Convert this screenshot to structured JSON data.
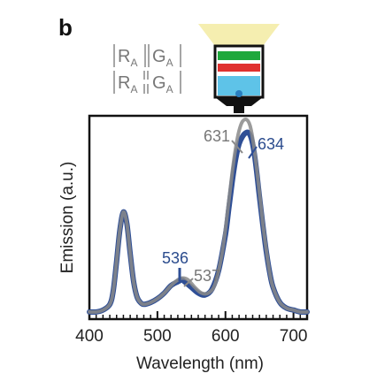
{
  "panel_label": "b",
  "legend": {
    "row1": {
      "a": "R",
      "a_sub": "A",
      "b": "G",
      "b_sub": "A"
    },
    "row2": {
      "a": "R",
      "a_sub": "A",
      "b": "G",
      "b_sub": "A"
    }
  },
  "colors": {
    "blue_series": "#2f4f96",
    "grey_series": "#8a8a8a",
    "device_green": "#1fa83c",
    "device_red": "#e0312f",
    "device_cyan": "#5ec3e8",
    "light_cone": "#f5eeb0"
  },
  "chart_data": {
    "type": "line",
    "title": "",
    "xlabel": "Wavelength (nm)",
    "ylabel": "Emission (a.u.)",
    "xlim": [
      400,
      720
    ],
    "ylim": [
      0,
      1.05
    ],
    "xticks": [
      400,
      500,
      600,
      700
    ],
    "series": [
      {
        "color": "#2f4f96",
        "x": [
          400,
          410,
          420,
          430,
          435,
          440,
          445,
          450,
          455,
          460,
          465,
          470,
          475,
          480,
          490,
          500,
          510,
          520,
          530,
          536,
          540,
          550,
          560,
          570,
          580,
          590,
          600,
          605,
          610,
          615,
          620,
          625,
          630,
          634,
          638,
          642,
          646,
          650,
          655,
          660,
          665,
          670,
          680,
          690,
          700,
          710,
          720
        ],
        "y": [
          0.01,
          0.01,
          0.02,
          0.05,
          0.12,
          0.28,
          0.45,
          0.54,
          0.48,
          0.32,
          0.17,
          0.09,
          0.06,
          0.05,
          0.06,
          0.08,
          0.11,
          0.15,
          0.17,
          0.18,
          0.17,
          0.14,
          0.11,
          0.1,
          0.13,
          0.23,
          0.42,
          0.56,
          0.7,
          0.82,
          0.9,
          0.94,
          0.96,
          0.96,
          0.93,
          0.86,
          0.75,
          0.62,
          0.47,
          0.33,
          0.22,
          0.14,
          0.06,
          0.03,
          0.02,
          0.01,
          0.01
        ]
      },
      {
        "color": "#8a8a8a",
        "x": [
          400,
          410,
          420,
          430,
          435,
          440,
          445,
          450,
          455,
          460,
          465,
          470,
          475,
          480,
          490,
          500,
          510,
          520,
          530,
          537,
          545,
          555,
          565,
          575,
          585,
          595,
          600,
          605,
          610,
          615,
          620,
          625,
          631,
          636,
          640,
          645,
          650,
          655,
          660,
          665,
          670,
          680,
          690,
          700,
          710,
          720
        ],
        "y": [
          0.01,
          0.01,
          0.02,
          0.05,
          0.12,
          0.28,
          0.45,
          0.54,
          0.48,
          0.32,
          0.17,
          0.09,
          0.06,
          0.05,
          0.06,
          0.08,
          0.11,
          0.15,
          0.18,
          0.19,
          0.18,
          0.14,
          0.11,
          0.11,
          0.16,
          0.32,
          0.45,
          0.6,
          0.75,
          0.88,
          0.97,
          1.02,
          1.03,
          1.0,
          0.93,
          0.8,
          0.64,
          0.48,
          0.34,
          0.22,
          0.14,
          0.06,
          0.03,
          0.02,
          0.01,
          0.01
        ]
      }
    ],
    "annotations": [
      {
        "text": "631",
        "x": 631,
        "y": 1.03,
        "series": 1
      },
      {
        "text": "634",
        "x": 634,
        "y": 0.96,
        "series": 0
      },
      {
        "text": "536",
        "x": 536,
        "y": 0.18,
        "series": 0
      },
      {
        "text": "537",
        "x": 537,
        "y": 0.19,
        "series": 1
      }
    ]
  }
}
